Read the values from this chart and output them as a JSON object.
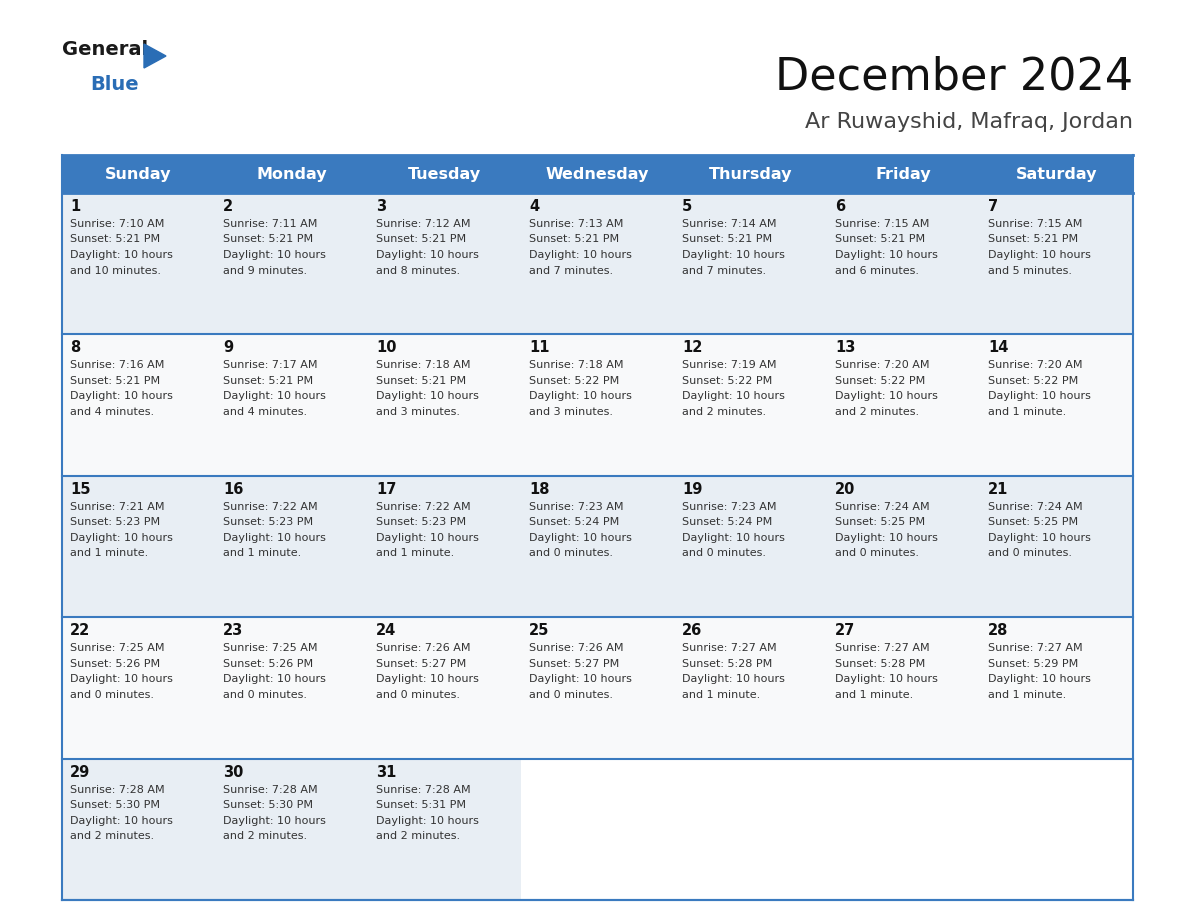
{
  "title": "December 2024",
  "subtitle": "Ar Ruwayshid, Mafraq, Jordan",
  "days_of_week": [
    "Sunday",
    "Monday",
    "Tuesday",
    "Wednesday",
    "Thursday",
    "Friday",
    "Saturday"
  ],
  "header_bg": "#3a7abf",
  "header_text": "#ffffff",
  "row_bg_even": "#e8eef4",
  "row_bg_odd": "#f8f9fa",
  "cell_text_color": "#333333",
  "day_num_color": "#111111",
  "border_color": "#3a7abf",
  "calendar_data": [
    {
      "day": 1,
      "col": 0,
      "row": 0,
      "sunrise": "7:10 AM",
      "sunset": "5:21 PM",
      "daylight": "10 hours and 10 minutes."
    },
    {
      "day": 2,
      "col": 1,
      "row": 0,
      "sunrise": "7:11 AM",
      "sunset": "5:21 PM",
      "daylight": "10 hours and 9 minutes."
    },
    {
      "day": 3,
      "col": 2,
      "row": 0,
      "sunrise": "7:12 AM",
      "sunset": "5:21 PM",
      "daylight": "10 hours and 8 minutes."
    },
    {
      "day": 4,
      "col": 3,
      "row": 0,
      "sunrise": "7:13 AM",
      "sunset": "5:21 PM",
      "daylight": "10 hours and 7 minutes."
    },
    {
      "day": 5,
      "col": 4,
      "row": 0,
      "sunrise": "7:14 AM",
      "sunset": "5:21 PM",
      "daylight": "10 hours and 7 minutes."
    },
    {
      "day": 6,
      "col": 5,
      "row": 0,
      "sunrise": "7:15 AM",
      "sunset": "5:21 PM",
      "daylight": "10 hours and 6 minutes."
    },
    {
      "day": 7,
      "col": 6,
      "row": 0,
      "sunrise": "7:15 AM",
      "sunset": "5:21 PM",
      "daylight": "10 hours and 5 minutes."
    },
    {
      "day": 8,
      "col": 0,
      "row": 1,
      "sunrise": "7:16 AM",
      "sunset": "5:21 PM",
      "daylight": "10 hours and 4 minutes."
    },
    {
      "day": 9,
      "col": 1,
      "row": 1,
      "sunrise": "7:17 AM",
      "sunset": "5:21 PM",
      "daylight": "10 hours and 4 minutes."
    },
    {
      "day": 10,
      "col": 2,
      "row": 1,
      "sunrise": "7:18 AM",
      "sunset": "5:21 PM",
      "daylight": "10 hours and 3 minutes."
    },
    {
      "day": 11,
      "col": 3,
      "row": 1,
      "sunrise": "7:18 AM",
      "sunset": "5:22 PM",
      "daylight": "10 hours and 3 minutes."
    },
    {
      "day": 12,
      "col": 4,
      "row": 1,
      "sunrise": "7:19 AM",
      "sunset": "5:22 PM",
      "daylight": "10 hours and 2 minutes."
    },
    {
      "day": 13,
      "col": 5,
      "row": 1,
      "sunrise": "7:20 AM",
      "sunset": "5:22 PM",
      "daylight": "10 hours and 2 minutes."
    },
    {
      "day": 14,
      "col": 6,
      "row": 1,
      "sunrise": "7:20 AM",
      "sunset": "5:22 PM",
      "daylight": "10 hours and 1 minute."
    },
    {
      "day": 15,
      "col": 0,
      "row": 2,
      "sunrise": "7:21 AM",
      "sunset": "5:23 PM",
      "daylight": "10 hours and 1 minute."
    },
    {
      "day": 16,
      "col": 1,
      "row": 2,
      "sunrise": "7:22 AM",
      "sunset": "5:23 PM",
      "daylight": "10 hours and 1 minute."
    },
    {
      "day": 17,
      "col": 2,
      "row": 2,
      "sunrise": "7:22 AM",
      "sunset": "5:23 PM",
      "daylight": "10 hours and 1 minute."
    },
    {
      "day": 18,
      "col": 3,
      "row": 2,
      "sunrise": "7:23 AM",
      "sunset": "5:24 PM",
      "daylight": "10 hours and 0 minutes."
    },
    {
      "day": 19,
      "col": 4,
      "row": 2,
      "sunrise": "7:23 AM",
      "sunset": "5:24 PM",
      "daylight": "10 hours and 0 minutes."
    },
    {
      "day": 20,
      "col": 5,
      "row": 2,
      "sunrise": "7:24 AM",
      "sunset": "5:25 PM",
      "daylight": "10 hours and 0 minutes."
    },
    {
      "day": 21,
      "col": 6,
      "row": 2,
      "sunrise": "7:24 AM",
      "sunset": "5:25 PM",
      "daylight": "10 hours and 0 minutes."
    },
    {
      "day": 22,
      "col": 0,
      "row": 3,
      "sunrise": "7:25 AM",
      "sunset": "5:26 PM",
      "daylight": "10 hours and 0 minutes."
    },
    {
      "day": 23,
      "col": 1,
      "row": 3,
      "sunrise": "7:25 AM",
      "sunset": "5:26 PM",
      "daylight": "10 hours and 0 minutes."
    },
    {
      "day": 24,
      "col": 2,
      "row": 3,
      "sunrise": "7:26 AM",
      "sunset": "5:27 PM",
      "daylight": "10 hours and 0 minutes."
    },
    {
      "day": 25,
      "col": 3,
      "row": 3,
      "sunrise": "7:26 AM",
      "sunset": "5:27 PM",
      "daylight": "10 hours and 0 minutes."
    },
    {
      "day": 26,
      "col": 4,
      "row": 3,
      "sunrise": "7:27 AM",
      "sunset": "5:28 PM",
      "daylight": "10 hours and 1 minute."
    },
    {
      "day": 27,
      "col": 5,
      "row": 3,
      "sunrise": "7:27 AM",
      "sunset": "5:28 PM",
      "daylight": "10 hours and 1 minute."
    },
    {
      "day": 28,
      "col": 6,
      "row": 3,
      "sunrise": "7:27 AM",
      "sunset": "5:29 PM",
      "daylight": "10 hours and 1 minute."
    },
    {
      "day": 29,
      "col": 0,
      "row": 4,
      "sunrise": "7:28 AM",
      "sunset": "5:30 PM",
      "daylight": "10 hours and 2 minutes."
    },
    {
      "day": 30,
      "col": 1,
      "row": 4,
      "sunrise": "7:28 AM",
      "sunset": "5:30 PM",
      "daylight": "10 hours and 2 minutes."
    },
    {
      "day": 31,
      "col": 2,
      "row": 4,
      "sunrise": "7:28 AM",
      "sunset": "5:31 PM",
      "daylight": "10 hours and 2 minutes."
    }
  ]
}
